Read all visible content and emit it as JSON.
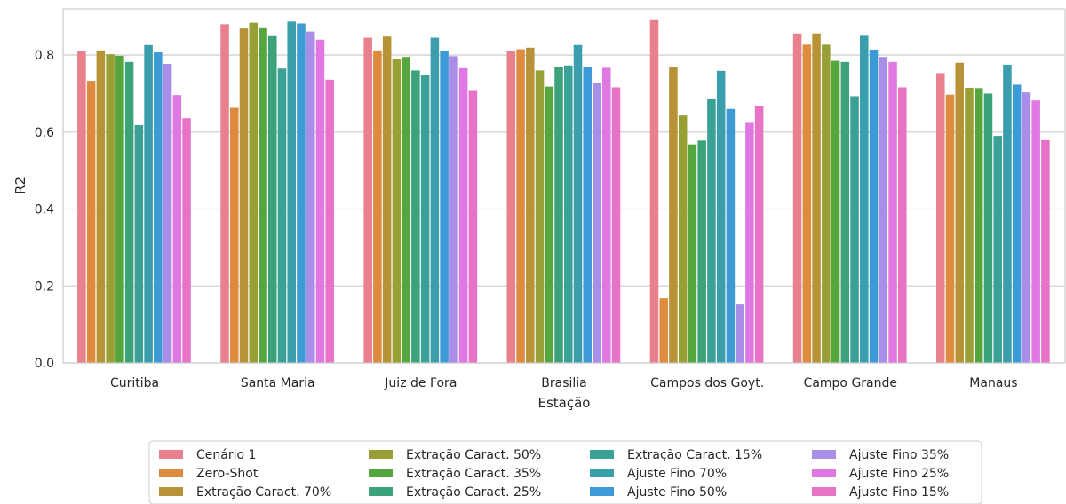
{
  "chart_data": {
    "type": "bar",
    "title": "",
    "xlabel": "Estação",
    "ylabel": "R2",
    "ylim": [
      0,
      0.92
    ],
    "yticks": [
      "0.0",
      "0.2",
      "0.4",
      "0.6",
      "0.8"
    ],
    "grid": true,
    "legend_position": "bottom-center",
    "categories": [
      "Curitiba",
      "Santa Maria",
      "Juiz de Fora",
      "Brasilia",
      "Campos dos Goyt.",
      "Campo Grande",
      "Manaus"
    ],
    "series": [
      {
        "name": "Cenário 1",
        "color": "#e8808e",
        "values": [
          0.81,
          0.88,
          0.845,
          0.811,
          0.893,
          0.856,
          0.753
        ]
      },
      {
        "name": "Zero-Shot",
        "color": "#df8b3f",
        "values": [
          0.733,
          0.663,
          0.812,
          0.815,
          0.168,
          0.827,
          0.697
        ]
      },
      {
        "name": "Extração Caract. 70%",
        "color": "#b79236",
        "values": [
          0.812,
          0.869,
          0.848,
          0.819,
          0.77,
          0.856,
          0.78
        ]
      },
      {
        "name": "Extração Caract. 50%",
        "color": "#98a035",
        "values": [
          0.802,
          0.884,
          0.79,
          0.76,
          0.643,
          0.827,
          0.715
        ]
      },
      {
        "name": "Extração Caract. 35%",
        "color": "#55a63c",
        "values": [
          0.798,
          0.872,
          0.795,
          0.718,
          0.568,
          0.785,
          0.714
        ]
      },
      {
        "name": "Extração Caract. 25%",
        "color": "#3ba27a",
        "values": [
          0.782,
          0.849,
          0.76,
          0.77,
          0.578,
          0.782,
          0.7
        ]
      },
      {
        "name": "Extração Caract. 15%",
        "color": "#3aa197",
        "values": [
          0.618,
          0.765,
          0.748,
          0.773,
          0.685,
          0.693,
          0.59
        ]
      },
      {
        "name": "Ajuste Fino 70%",
        "color": "#3a9eac",
        "values": [
          0.826,
          0.887,
          0.845,
          0.826,
          0.759,
          0.85,
          0.775
        ]
      },
      {
        "name": "Ajuste Fino 50%",
        "color": "#3c9ad6",
        "values": [
          0.807,
          0.882,
          0.811,
          0.77,
          0.66,
          0.814,
          0.723
        ]
      },
      {
        "name": "Ajuste Fino 35%",
        "color": "#a88ee8",
        "values": [
          0.777,
          0.861,
          0.797,
          0.727,
          0.152,
          0.795,
          0.703
        ]
      },
      {
        "name": "Ajuste Fino 25%",
        "color": "#df78e3",
        "values": [
          0.696,
          0.84,
          0.766,
          0.767,
          0.624,
          0.782,
          0.682
        ]
      },
      {
        "name": "Ajuste Fino 15%",
        "color": "#e772c6",
        "values": [
          0.636,
          0.736,
          0.709,
          0.716,
          0.667,
          0.716,
          0.579
        ]
      }
    ]
  }
}
